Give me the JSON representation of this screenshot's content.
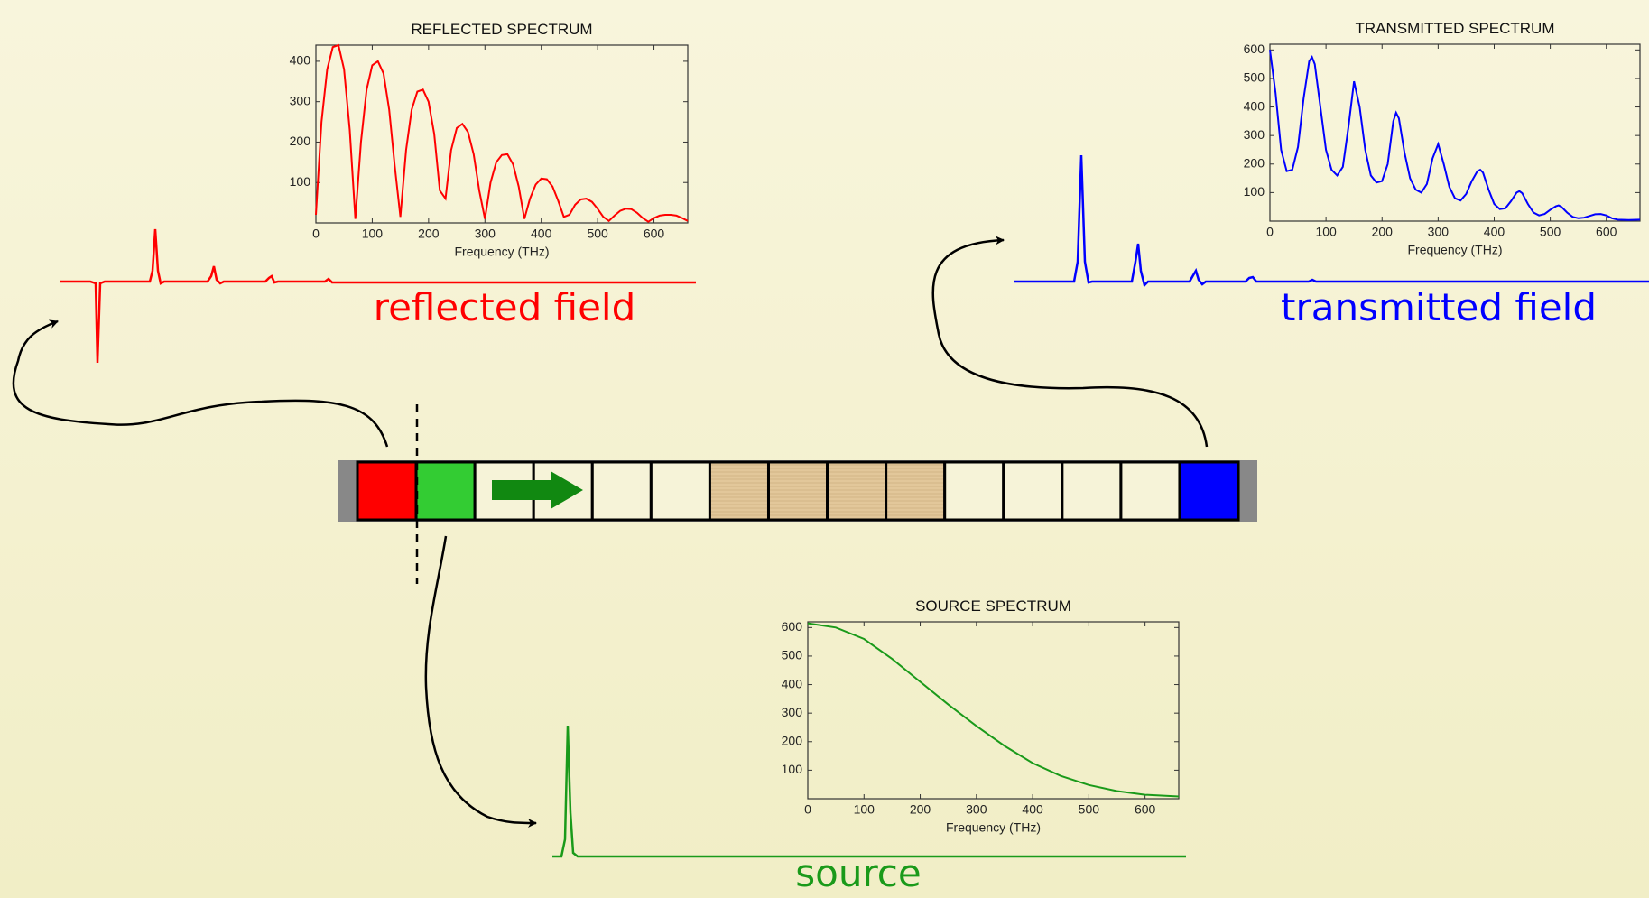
{
  "chart_data": [
    {
      "type": "line",
      "title": "REFLECTED SPECTRUM",
      "x_label": "Frequency (THz)",
      "color": "#ff0000",
      "x": [
        0,
        10,
        20,
        30,
        40,
        50,
        60,
        70,
        80,
        90,
        100,
        110,
        120,
        130,
        140,
        150,
        160,
        170,
        180,
        190,
        200,
        210,
        220,
        230,
        240,
        250,
        260,
        270,
        280,
        290,
        300,
        310,
        320,
        330,
        340,
        350,
        360,
        370,
        380,
        390,
        400,
        410,
        420,
        430,
        440,
        450,
        460,
        470,
        480,
        490,
        500,
        510,
        520,
        530,
        540,
        550,
        560,
        570,
        580,
        590,
        600,
        610,
        620,
        630,
        640,
        650,
        660
      ],
      "values": [
        20,
        250,
        380,
        435,
        440,
        380,
        230,
        10,
        200,
        330,
        390,
        400,
        370,
        280,
        140,
        15,
        180,
        280,
        325,
        330,
        300,
        220,
        80,
        60,
        180,
        235,
        245,
        225,
        170,
        80,
        10,
        100,
        150,
        168,
        170,
        145,
        90,
        10,
        60,
        95,
        110,
        108,
        90,
        55,
        15,
        20,
        45,
        58,
        60,
        52,
        35,
        15,
        5,
        18,
        30,
        35,
        34,
        25,
        12,
        3,
        12,
        18,
        20,
        20,
        18,
        12,
        5
      ],
      "xlim": [
        0,
        660
      ],
      "ylim": [
        0,
        440
      ],
      "xticks": [
        0,
        100,
        200,
        300,
        400,
        500,
        600
      ],
      "yticks": [
        100,
        200,
        300,
        400
      ]
    },
    {
      "type": "line",
      "title": "TRANSMITTED SPECTRUM",
      "x_label": "Frequency (THz)",
      "color": "#0000ff",
      "x": [
        0,
        10,
        20,
        30,
        40,
        50,
        60,
        70,
        75,
        80,
        90,
        100,
        110,
        120,
        130,
        140,
        150,
        160,
        170,
        180,
        190,
        200,
        210,
        220,
        225,
        230,
        240,
        250,
        260,
        270,
        280,
        290,
        300,
        310,
        320,
        330,
        340,
        350,
        360,
        370,
        375,
        380,
        390,
        400,
        410,
        420,
        430,
        440,
        445,
        450,
        460,
        470,
        480,
        490,
        500,
        510,
        515,
        520,
        530,
        540,
        550,
        560,
        570,
        580,
        590,
        600,
        610,
        620,
        640,
        660
      ],
      "values": [
        600,
        450,
        250,
        175,
        180,
        260,
        430,
        560,
        575,
        550,
        400,
        250,
        180,
        160,
        190,
        330,
        490,
        400,
        250,
        160,
        135,
        140,
        200,
        350,
        380,
        360,
        240,
        150,
        110,
        100,
        130,
        220,
        270,
        200,
        120,
        80,
        72,
        95,
        140,
        175,
        180,
        170,
        110,
        60,
        42,
        45,
        70,
        100,
        105,
        98,
        60,
        30,
        20,
        25,
        40,
        52,
        55,
        50,
        30,
        15,
        10,
        12,
        18,
        24,
        25,
        20,
        10,
        5,
        4,
        5
      ],
      "xlim": [
        0,
        660
      ],
      "ylim": [
        0,
        620
      ],
      "xticks": [
        0,
        100,
        200,
        300,
        400,
        500,
        600
      ],
      "yticks": [
        100,
        200,
        300,
        400,
        500,
        600
      ]
    },
    {
      "type": "line",
      "title": "SOURCE SPECTRUM",
      "x_label": "Frequency (THz)",
      "color": "#1a9a1a",
      "x": [
        0,
        50,
        100,
        150,
        200,
        250,
        300,
        350,
        400,
        450,
        500,
        550,
        600,
        660
      ],
      "values": [
        615,
        600,
        560,
        490,
        410,
        330,
        255,
        185,
        125,
        80,
        48,
        27,
        14,
        8
      ],
      "xlim": [
        0,
        660
      ],
      "ylim": [
        0,
        620
      ],
      "xticks": [
        0,
        100,
        200,
        300,
        400,
        500,
        600
      ],
      "yticks": [
        100,
        200,
        300,
        400,
        500,
        600
      ]
    }
  ],
  "field_labels": {
    "reflected": "reflected field",
    "transmitted": "transmitted field",
    "source": "source"
  }
}
